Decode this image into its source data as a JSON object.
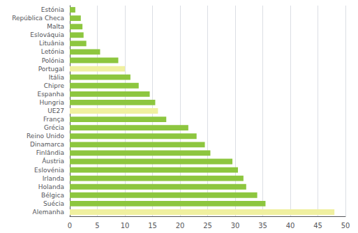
{
  "chart_data": {
    "type": "bar",
    "orientation": "horizontal",
    "categories": [
      "Estónia",
      "República Checa",
      "Malta",
      "Eslováquia",
      "Lituânia",
      "Letónia",
      "Polónia",
      "Portugal",
      "Itália",
      "Chipre",
      "Espanha",
      "Hungria",
      "UE27",
      "França",
      "Grécia",
      "Reino Unido",
      "Dinamarca",
      "Finlândia",
      "Áustria",
      "Eslovénia",
      "Irlanda",
      "Holanda",
      "Bélgica",
      "Suécia",
      "Alemanha"
    ],
    "values": [
      1.0,
      2.0,
      2.3,
      2.5,
      3.0,
      5.5,
      8.8,
      10.0,
      11.0,
      12.5,
      14.5,
      15.5,
      16.0,
      17.5,
      21.5,
      23.0,
      24.5,
      25.5,
      29.5,
      30.5,
      31.5,
      32.0,
      34.0,
      35.5,
      48.0
    ],
    "colors": [
      "#8DC63F",
      "#8DC63F",
      "#8DC63F",
      "#8DC63F",
      "#8DC63F",
      "#8DC63F",
      "#8DC63F",
      "#F0F0A0",
      "#8DC63F",
      "#8DC63F",
      "#8DC63F",
      "#8DC63F",
      "#F0F0A0",
      "#8DC63F",
      "#8DC63F",
      "#8DC63F",
      "#8DC63F",
      "#8DC63F",
      "#8DC63F",
      "#8DC63F",
      "#8DC63F",
      "#8DC63F",
      "#8DC63F",
      "#8DC63F",
      "#F0F0A0"
    ],
    "xlim": [
      0,
      50
    ],
    "xticks": [
      0,
      5,
      10,
      15,
      20,
      25,
      30,
      35,
      40,
      45,
      50
    ],
    "grid": true
  }
}
